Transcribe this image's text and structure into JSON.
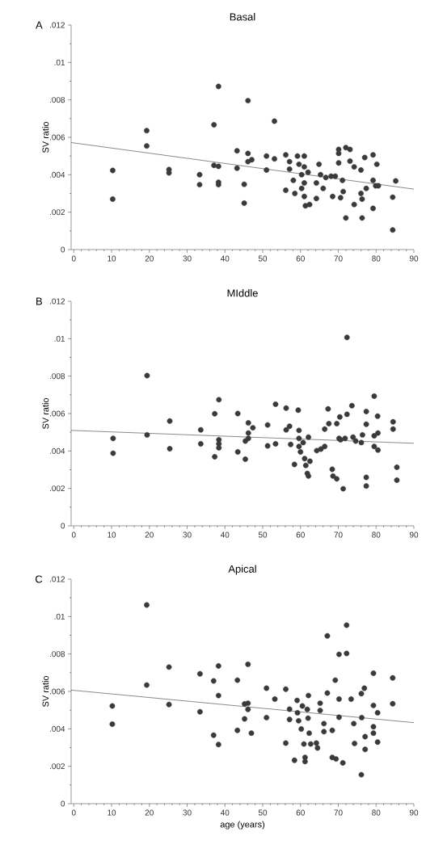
{
  "chart_data": [
    {
      "type": "scatter",
      "title": "Basal",
      "ylabel": "SV ratio",
      "annotations": [
        "A"
      ],
      "xlim": [
        -0.7,
        90
      ],
      "ylim": [
        0,
        0.012
      ],
      "xticks": [
        0,
        10,
        20,
        30,
        40,
        50,
        60,
        70,
        80,
        90
      ],
      "yticks": [
        0,
        {
          "value": 0.002,
          "label": ".002"
        },
        {
          "value": 0.004,
          "label": ".004"
        },
        {
          "value": 0.006,
          "label": ".006"
        },
        {
          "value": 0.008,
          "label": ".008"
        },
        {
          "value": 0.01,
          "label": ".01"
        },
        {
          "value": 0.012,
          "label": ".012"
        }
      ],
      "series": [
        {
          "marker": "circle",
          "color": "#3a3a3a",
          "x": [
            10.3,
            10.3,
            19.3,
            19.3,
            25.2,
            25.2,
            33.3,
            33.3,
            37.1,
            37.1,
            38.3,
            38.3,
            38.3,
            38.3,
            43.2,
            43.2,
            45.1,
            45.1,
            46.1,
            46.1,
            46.1,
            47.1,
            51,
            51,
            53.1,
            53.1,
            56.1,
            56.1,
            57.1,
            57.1,
            58.1,
            58.5,
            59.2,
            59.6,
            60.3,
            60.3,
            61,
            61,
            61,
            61,
            61.3,
            62,
            62.4,
            64.2,
            64.2,
            64.9,
            65.3,
            66,
            66.7,
            68.1,
            68.5,
            69.2,
            70.1,
            70.1,
            70.1,
            70.6,
            71.1,
            71.3,
            72,
            72,
            73.1,
            73.1,
            74.2,
            74.2,
            76,
            76.3,
            76,
            76.3,
            77,
            77.4,
            79.2,
            79.2,
            79.2,
            79.9,
            80.2,
            80.6,
            84.4,
            84.4,
            85.2
          ],
          "values": [
            0.00423,
            0.0027,
            0.00636,
            0.00554,
            0.00428,
            0.0041,
            0.004,
            0.00347,
            0.00667,
            0.0045,
            0.00872,
            0.00445,
            0.0036,
            0.00347,
            0.00528,
            0.00435,
            0.00349,
            0.00248,
            0.00796,
            0.00514,
            0.0047,
            0.0048,
            0.005,
            0.00425,
            0.00686,
            0.00485,
            0.00506,
            0.00317,
            0.0047,
            0.0043,
            0.0037,
            0.003,
            0.005,
            0.00456,
            0.004,
            0.00327,
            0.005,
            0.00442,
            0.00356,
            0.00284,
            0.00234,
            0.00413,
            0.00241,
            0.00273,
            0.00356,
            0.00456,
            0.004,
            0.00327,
            0.00385,
            0.00392,
            0.00284,
            0.00392,
            0.00535,
            0.00514,
            0.00463,
            0.00277,
            0.0037,
            0.0031,
            0.00545,
            0.00169,
            0.00535,
            0.00473,
            0.00442,
            0.00241,
            0.00425,
            0.00169,
            0.003,
            0.0027,
            0.00492,
            0.00327,
            0.00506,
            0.0022,
            0.0037,
            0.00341,
            0.00456,
            0.00341,
            0.0028,
            0.00105,
            0.00367
          ]
        },
        {
          "type": "line",
          "color": "#3a3a3a",
          "x": [
            -0.7,
            90
          ],
          "values": [
            0.00572,
            0.00323
          ]
        }
      ]
    },
    {
      "type": "scatter",
      "title": "MIddle",
      "ylabel": "SV ratio",
      "annotations": [
        "B"
      ],
      "xlim": [
        -0.7,
        90
      ],
      "ylim": [
        0,
        0.012
      ],
      "xticks": [
        0,
        10,
        20,
        30,
        40,
        50,
        60,
        70,
        80,
        90
      ],
      "yticks": [
        0,
        {
          "value": 0.002,
          "label": ".002"
        },
        {
          "value": 0.004,
          "label": ".004"
        },
        {
          "value": 0.006,
          "label": ".006"
        },
        {
          "value": 0.008,
          "label": ".008"
        },
        {
          "value": 0.01,
          "label": ".01"
        },
        {
          "value": 0.012,
          "label": ".012"
        }
      ],
      "series": [
        {
          "marker": "circle",
          "color": "#3a3a3a",
          "x": [
            10.4,
            10.4,
            19.4,
            19.4,
            25.4,
            25.4,
            33.6,
            33.6,
            37.3,
            37.3,
            38.4,
            38.4,
            38.4,
            38.4,
            43.4,
            43.4,
            45.4,
            45.4,
            46.2,
            46.2,
            46.2,
            47.4,
            51.3,
            51.3,
            53.4,
            53.4,
            56.2,
            56.2,
            57.1,
            57.4,
            58.4,
            59.4,
            59.6,
            59.6,
            59.6,
            60,
            60.7,
            61.1,
            61.4,
            61.8,
            62.1,
            62.1,
            62.5,
            64.3,
            65.4,
            66.4,
            66.4,
            67.3,
            67.5,
            68.4,
            68.6,
            69.6,
            69.6,
            70.4,
            70.2,
            70.6,
            71.3,
            71.8,
            72.3,
            72.3,
            73.6,
            73.9,
            74.6,
            76.1,
            76.4,
            77.4,
            77.4,
            77.4,
            77.4,
            79.5,
            79.5,
            79.5,
            80.4,
            80.5,
            80.5,
            84.5,
            84.5,
            85.5,
            85.5
          ],
          "values": [
            0.00467,
            0.00388,
            0.00803,
            0.00486,
            0.0056,
            0.00412,
            0.00513,
            0.00438,
            0.00599,
            0.00369,
            0.00674,
            0.0046,
            0.00438,
            0.00417,
            0.006,
            0.00395,
            0.00356,
            0.00453,
            0.0055,
            0.00496,
            0.00467,
            0.00524,
            0.00539,
            0.00427,
            0.0065,
            0.00438,
            0.00629,
            0.00513,
            0.00532,
            0.00435,
            0.00328,
            0.00618,
            0.0051,
            0.00467,
            0.00424,
            0.00395,
            0.00445,
            0.00359,
            0.00323,
            0.0028,
            0.00474,
            0.00266,
            0.00345,
            0.00402,
            0.0041,
            0.00424,
            0.00517,
            0.00625,
            0.00546,
            0.00302,
            0.00266,
            0.00251,
            0.00546,
            0.00582,
            0.00467,
            0.0046,
            0.00198,
            0.00467,
            0.01007,
            0.00596,
            0.00642,
            0.00474,
            0.00453,
            0.00445,
            0.00486,
            0.00611,
            0.00543,
            0.00259,
            0.00213,
            0.00693,
            0.00481,
            0.00424,
            0.00586,
            0.00496,
            0.00405,
            0.00556,
            0.00517,
            0.00313,
            0.00244
          ]
        },
        {
          "type": "line",
          "color": "#3a3a3a",
          "x": [
            -0.7,
            90
          ],
          "values": [
            0.0051,
            0.00441
          ]
        }
      ]
    },
    {
      "type": "scatter",
      "title": "Apical",
      "ylabel": "SV ratio",
      "xlabel": "age (years)",
      "annotations": [
        "C"
      ],
      "xlim": [
        -0.7,
        90
      ],
      "ylim": [
        0,
        0.012
      ],
      "xticks": [
        0,
        10,
        20,
        30,
        40,
        50,
        60,
        70,
        80,
        90
      ],
      "yticks": [
        0,
        {
          "value": 0.002,
          "label": ".002"
        },
        {
          "value": 0.004,
          "label": ".004"
        },
        {
          "value": 0.006,
          "label": ".006"
        },
        {
          "value": 0.008,
          "label": ".008"
        },
        {
          "value": 0.01,
          "label": ".01"
        },
        {
          "value": 0.012,
          "label": ".012"
        }
      ],
      "series": [
        {
          "marker": "circle",
          "color": "#3a3a3a",
          "x": [
            10.2,
            10.2,
            19.3,
            19.3,
            25.2,
            25.2,
            33.4,
            33.4,
            37,
            37,
            38.3,
            38.3,
            38.3,
            43.3,
            43.3,
            45.2,
            45.2,
            46.1,
            46.1,
            46.1,
            47,
            51,
            51,
            53.2,
            56.1,
            56.1,
            57.1,
            57.1,
            58.4,
            59.1,
            59.2,
            59.5,
            60.2,
            60.5,
            60.9,
            61.2,
            61.2,
            61.8,
            62,
            62.1,
            62.3,
            62.7,
            64.2,
            64.5,
            65.2,
            65.2,
            66.2,
            66.2,
            67.1,
            67.1,
            68.4,
            68.4,
            69.2,
            69.4,
            70.2,
            70.2,
            70.2,
            71.2,
            72.2,
            72.2,
            73.4,
            74.1,
            74.3,
            76.1,
            76.1,
            76.2,
            76.9,
            77.1,
            77.1,
            79.3,
            79.3,
            79.3,
            79.3,
            80.4,
            80.4,
            84.4,
            84.4
          ],
          "values": [
            0.00522,
            0.00425,
            0.01062,
            0.00634,
            0.0073,
            0.0053,
            0.00694,
            0.00491,
            0.00656,
            0.00366,
            0.00736,
            0.00578,
            0.00316,
            0.0066,
            0.00392,
            0.00533,
            0.00453,
            0.00745,
            0.00537,
            0.00504,
            0.00377,
            0.00617,
            0.0046,
            0.00559,
            0.00612,
            0.00324,
            0.00505,
            0.0045,
            0.00232,
            0.00552,
            0.00486,
            0.00443,
            0.00399,
            0.00522,
            0.00319,
            0.00247,
            0.00225,
            0.00504,
            0.00457,
            0.00578,
            0.00377,
            0.00319,
            0.00324,
            0.00298,
            0.00537,
            0.00498,
            0.00428,
            0.00385,
            0.00897,
            0.00591,
            0.00392,
            0.00247,
            0.0066,
            0.00239,
            0.00798,
            0.00559,
            0.00462,
            0.00218,
            0.00954,
            0.00803,
            0.00559,
            0.00428,
            0.00322,
            0.00155,
            0.00588,
            0.0046,
            0.00617,
            0.00358,
            0.0029,
            0.00697,
            0.00525,
            0.00411,
            0.00377,
            0.00486,
            0.00329,
            0.00672,
            0.00534
          ]
        },
        {
          "type": "line",
          "color": "#3a3a3a",
          "x": [
            -0.7,
            90
          ],
          "values": [
            0.00607,
            0.00433
          ]
        }
      ]
    }
  ]
}
